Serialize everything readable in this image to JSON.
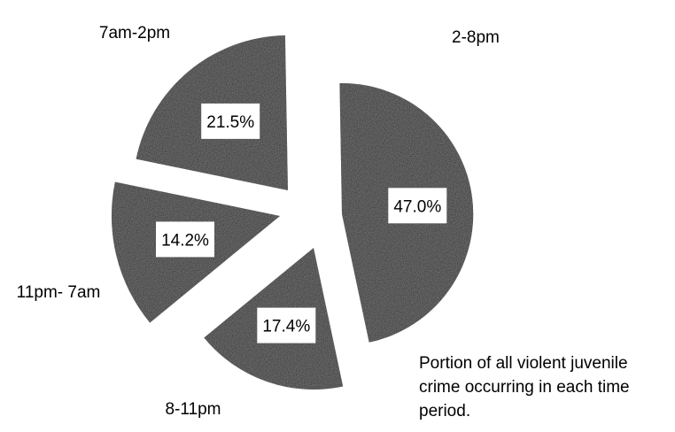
{
  "chart_data": {
    "type": "pie",
    "exploded": true,
    "categories": [
      "2-8pm",
      "8-11pm",
      "11pm- 7am",
      "7am-2pm"
    ],
    "values": [
      47.0,
      17.4,
      14.2,
      21.5
    ],
    "value_labels": [
      "47.0%",
      "17.4%",
      "14.2%",
      "21.5%"
    ],
    "title": "",
    "annotation": "Portion of all violent juvenile crime occurring in each time period.",
    "legend": "none",
    "slice_color": "#1a1a1a",
    "label_box_color": "#ffffff"
  }
}
